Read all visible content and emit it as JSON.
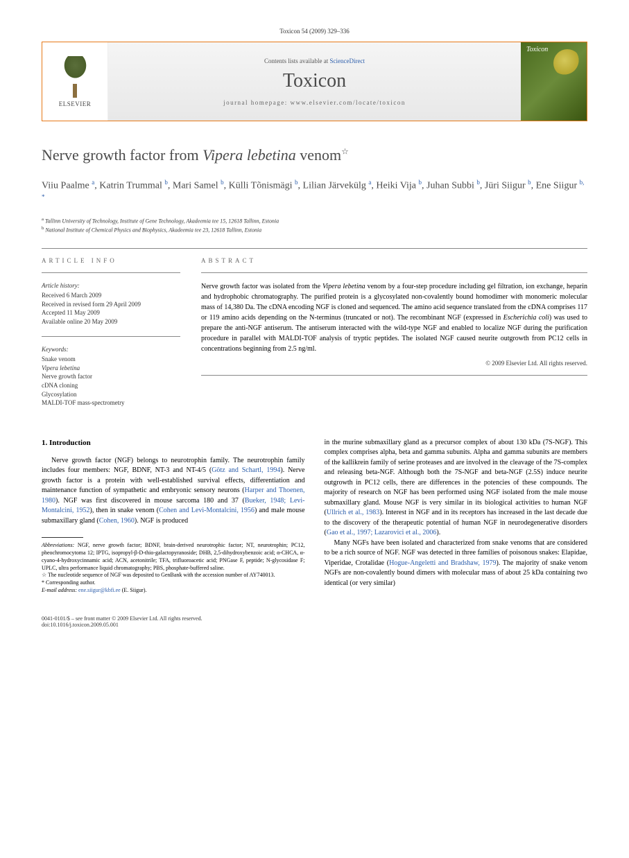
{
  "page_header": "Toxicon 54 (2009) 329–336",
  "banner": {
    "publisher": "ELSEVIER",
    "contents_prefix": "Contents lists available at ",
    "contents_link": "ScienceDirect",
    "journal": "Toxicon",
    "homepage_prefix": "journal homepage: ",
    "homepage": "www.elsevier.com/locate/toxicon",
    "cover_text": "Toxicon"
  },
  "title_part1": "Nerve growth factor from ",
  "title_italic": "Vipera lebetina",
  "title_part2": " venom",
  "star": "☆",
  "authors_html": "Viiu Paalme <sup>a</sup>, Katrin Trummal <sup>b</sup>, Mari Samel <sup>b</sup>, Külli Tõnismägi <sup>b</sup>, Lilian Järvekülg <sup>a</sup>, Heiki Vija <sup>b</sup>, Juhan Subbi <sup>b</sup>, Jüri Siigur <sup>b</sup>, Ene Siigur <sup>b, *</sup>",
  "affiliations": {
    "a": "Tallinn University of Technology, Institute of Gene Technology, Akadeemia tee 15, 12618 Tallinn, Estonia",
    "b": "National Institute of Chemical Physics and Biophysics, Akadeemia tee 23, 12618 Tallinn, Estonia"
  },
  "article_info": {
    "label": "ARTICLE INFO",
    "history_heading": "Article history:",
    "history": [
      "Received 6 March 2009",
      "Received in revised form 29 April 2009",
      "Accepted 11 May 2009",
      "Available online 20 May 2009"
    ],
    "keywords_heading": "Keywords:",
    "keywords": [
      "Snake venom",
      "Vipera lebetina",
      "Nerve growth factor",
      "cDNA cloning",
      "Glycosylation",
      "MALDI-TOF mass-spectrometry"
    ]
  },
  "abstract": {
    "label": "ABSTRACT",
    "text_parts": [
      {
        "t": "Nerve growth factor was isolated from the ",
        "i": false
      },
      {
        "t": "Vipera lebetina",
        "i": true
      },
      {
        "t": " venom by a four-step procedure including gel filtration, ion exchange, heparin and hydrophobic chromatography. The purified protein is a glycosylated non-covalently bound homodimer with monomeric molecular mass of 14,380 Da. The cDNA encoding NGF is cloned and sequenced. The amino acid sequence translated from the cDNA comprises 117 or 119 amino acids depending on the N-terminus (truncated or not). The recombinant NGF (expressed in ",
        "i": false
      },
      {
        "t": "Escherichia coli",
        "i": true
      },
      {
        "t": ") was used to prepare the anti-NGF antiserum. The antiserum interacted with the wild-type NGF and enabled to localize NGF during the purification procedure in parallel with MALDI-TOF analysis of tryptic peptides. The isolated NGF caused neurite outgrowth from PC12 cells in concentrations beginning from 2.5 ng/ml.",
        "i": false
      }
    ],
    "copyright": "© 2009 Elsevier Ltd. All rights reserved."
  },
  "body": {
    "heading": "1. Introduction",
    "col1_parts": [
      {
        "t": "Nerve growth factor (NGF) belongs to neurotrophin family. The neurotrophin family includes four members: NGF, BDNF, NT-3 and NT-4/5 (",
        "i": false
      },
      {
        "t": "Götz and Schartl, 1994",
        "i": false,
        "ref": true
      },
      {
        "t": "). Nerve growth factor is a protein with well-established survival effects, differentiation and maintenance function of sympathetic and embryonic sensory neurons (",
        "i": false
      },
      {
        "t": "Harper and Thoenen, 1980",
        "i": false,
        "ref": true
      },
      {
        "t": "). NGF was first discovered in mouse sarcoma 180 and 37 (",
        "i": false
      },
      {
        "t": "Bueker, 1948; Levi-Montalcini, 1952",
        "i": false,
        "ref": true
      },
      {
        "t": "), then in snake venom (",
        "i": false
      },
      {
        "t": "Cohen and Levi-Montalcini, 1956",
        "i": false,
        "ref": true
      },
      {
        "t": ") and male mouse submaxillary gland (",
        "i": false
      },
      {
        "t": "Cohen, 1960",
        "i": false,
        "ref": true
      },
      {
        "t": "). NGF is produced",
        "i": false
      }
    ],
    "col2_p1_parts": [
      {
        "t": "in the murine submaxillary gland as a precursor complex of about 130 kDa (7S-NGF). This complex comprises alpha, beta and gamma subunits. Alpha and gamma subunits are members of the kallikrein family of serine proteases and are involved in the cleavage of the 7S-complex and releasing beta-NGF. Although both the 7S-NGF and beta-NGF (2.5S) induce neurite outgrowth in PC12 cells, there are differences in the potencies of these compounds. The majority of research on NGF has been performed using NGF isolated from the male mouse submaxillary gland. Mouse NGF is very similar in its biological activities to human NGF (",
        "i": false
      },
      {
        "t": "Ullrich et al., 1983",
        "i": false,
        "ref": true
      },
      {
        "t": "). Interest in NGF and in its receptors has increased in the last decade due to the discovery of the therapeutic potential of human NGF in neurodegenerative disorders (",
        "i": false
      },
      {
        "t": "Gao et al., 1997; Lazarovici et al., 2006",
        "i": false,
        "ref": true
      },
      {
        "t": ").",
        "i": false
      }
    ],
    "col2_p2_parts": [
      {
        "t": "Many NGFs have been isolated and characterized from snake venoms that are considered to be a rich source of NGF. NGF was detected in three families of poisonous snakes: Elapidae, Viperidae, Crotalidae (",
        "i": false
      },
      {
        "t": "Hogue-Angeletti and Bradshaw, 1979",
        "i": false,
        "ref": true
      },
      {
        "t": "). The majority of snake venom NGFs are non-covalently bound dimers with molecular mass of about 25 kDa containing two identical (or very similar)",
        "i": false
      }
    ]
  },
  "footnotes": {
    "abbrev_label": "Abbreviations:",
    "abbrev_text": " NGF, nerve growth factor; BDNF, brain-derived neurotrophic factor; NT, neurotrophin; PC12, pheochromocytoma 12; IPTG, isopropyl-β-D-thio-galactopyranoside; DHB, 2,5-dihydroxybenzoic acid; α-CHCA, α-cyano-4-hydroxycinnamic acid; ACN, acetonitrile; TFA, trifluoroacetic acid; PNGase F, peptide; N-glycosidase F; UPLC, ultra performance liquid chromatography; PBS, phosphate-buffered saline.",
    "note_text": "The nucleotide sequence of NGF was deposited to GenBank with the accession number of AY740013.",
    "corr": "Corresponding author.",
    "email_label": "E-mail address:",
    "email": "ene.siigur@kbfi.ee",
    "email_name": "(E. Siigur)."
  },
  "footer": {
    "line1": "0041-0101/$ – see front matter © 2009 Elsevier Ltd. All rights reserved.",
    "line2": "doi:10.1016/j.toxicon.2009.05.001"
  },
  "colors": {
    "orange": "#e67817",
    "link": "#2a5caa",
    "grey_text": "#4a4a4a"
  }
}
